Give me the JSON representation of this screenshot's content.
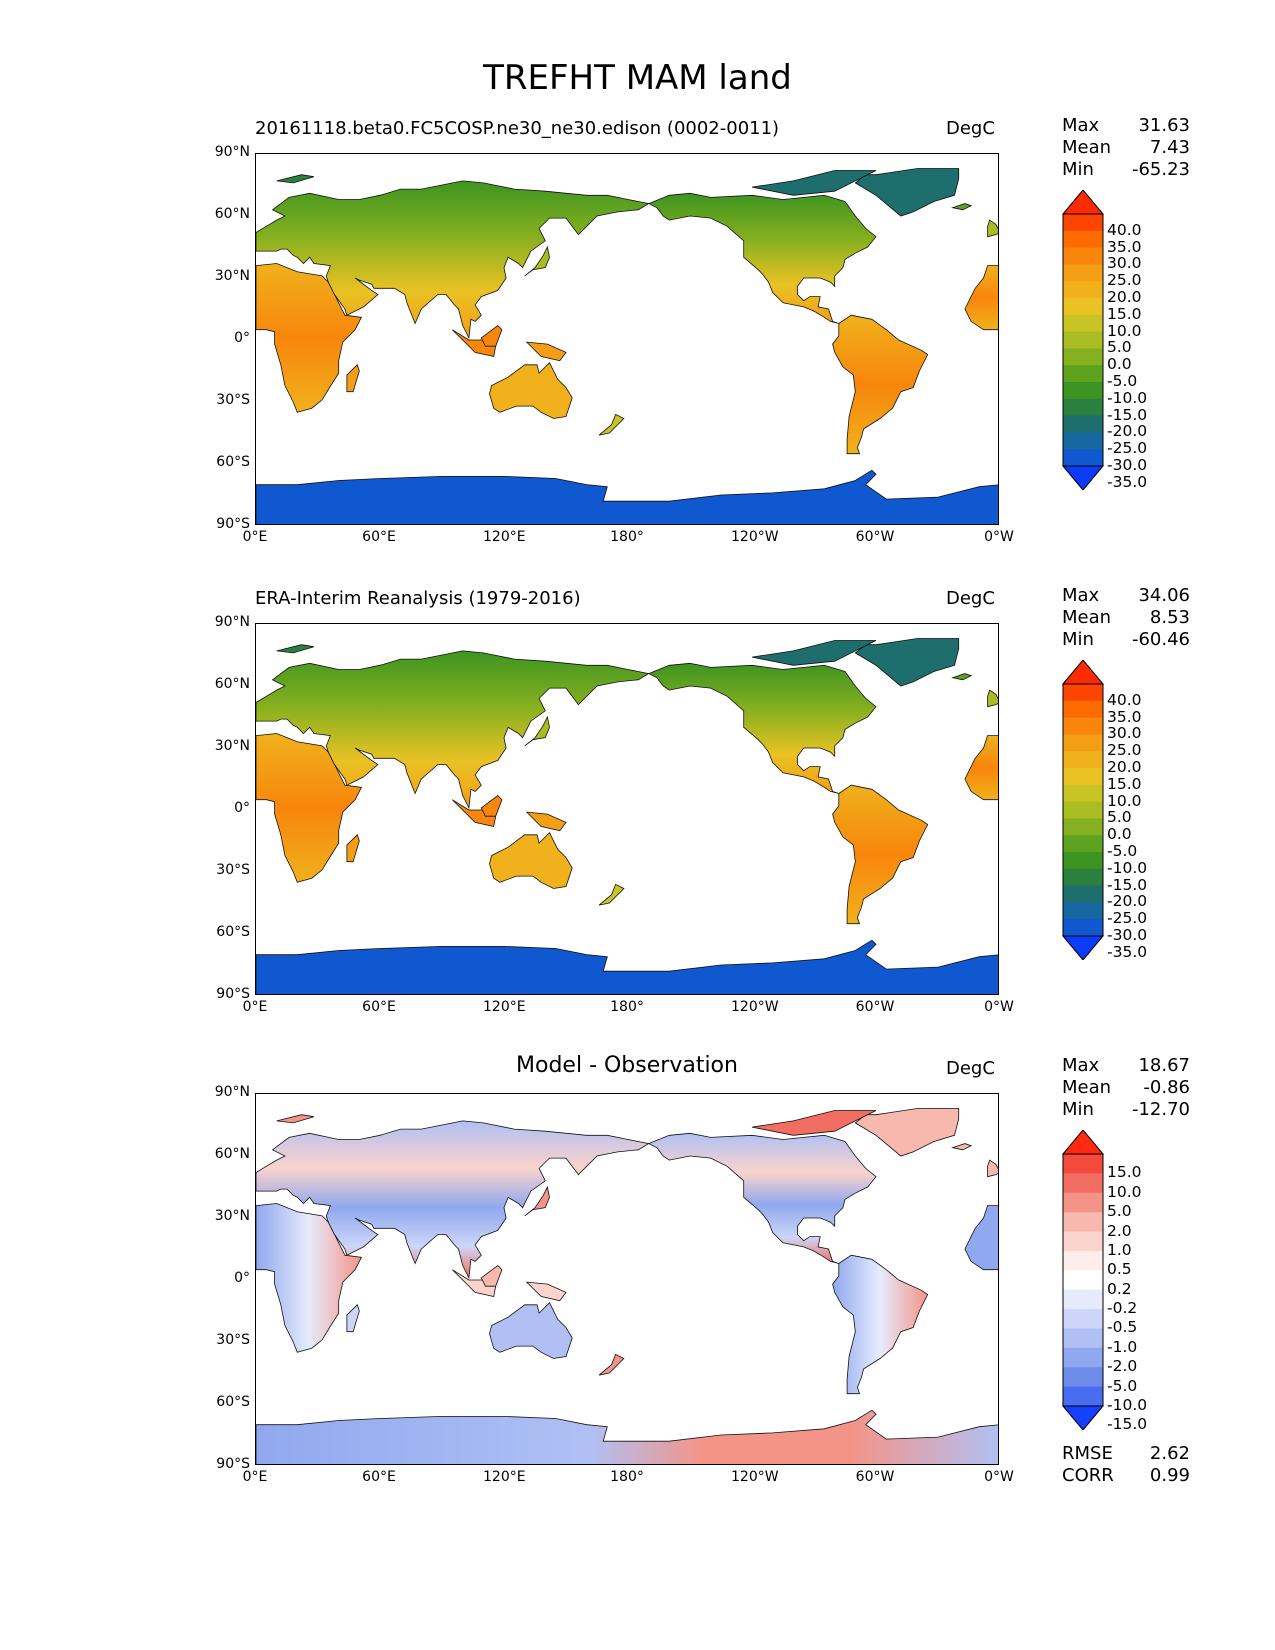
{
  "title": "TREFHT MAM land",
  "lat_ticks": [
    "90°N",
    "60°N",
    "30°N",
    "0°",
    "30°S",
    "60°S",
    "90°S"
  ],
  "lon_ticks": [
    "0°E",
    "60°E",
    "120°E",
    "180°",
    "120°W",
    "60°W",
    "0°W"
  ],
  "panels": [
    {
      "title": "20161118.beta0.FC5COSP.ne30_ne30.edison (0002-0011)",
      "units": "DegC",
      "stats": [
        {
          "label": "Max",
          "value": "31.63"
        },
        {
          "label": "Mean",
          "value": "7.43"
        },
        {
          "label": "Min",
          "value": "-65.23"
        }
      ],
      "colorbar_labels": [
        "40.0",
        "35.0",
        "30.0",
        "25.0",
        "20.0",
        "15.0",
        "10.0",
        "5.0",
        "0.0",
        "-5.0",
        "-10.0",
        "-15.0",
        "-20.0",
        "-25.0",
        "-30.0",
        "-35.0"
      ],
      "colors": [
        "#fe2a00",
        "#fe4500",
        "#fd6a00",
        "#f8860c",
        "#f49e16",
        "#f0b11c",
        "#e9c224",
        "#c9c426",
        "#a9bc22",
        "#85b01f",
        "#5ea31f",
        "#3d9421",
        "#2b8040",
        "#1e6e6e",
        "#1768a0",
        "#1058d0",
        "#0a3cfa"
      ]
    },
    {
      "title": "ERA-Interim Reanalysis (1979-2016)",
      "units": "DegC",
      "stats": [
        {
          "label": "Max",
          "value": "34.06"
        },
        {
          "label": "Mean",
          "value": "8.53"
        },
        {
          "label": "Min",
          "value": "-60.46"
        }
      ],
      "colorbar_labels": [
        "40.0",
        "35.0",
        "30.0",
        "25.0",
        "20.0",
        "15.0",
        "10.0",
        "5.0",
        "0.0",
        "-5.0",
        "-10.0",
        "-15.0",
        "-20.0",
        "-25.0",
        "-30.0",
        "-35.0"
      ],
      "colors": [
        "#fe2a00",
        "#fe4500",
        "#fd6a00",
        "#f8860c",
        "#f49e16",
        "#f0b11c",
        "#e9c224",
        "#c9c426",
        "#a9bc22",
        "#85b01f",
        "#5ea31f",
        "#3d9421",
        "#2b8040",
        "#1e6e6e",
        "#1768a0",
        "#1058d0",
        "#0a3cfa"
      ]
    },
    {
      "title": "Model - Observation",
      "units": "DegC",
      "stats": [
        {
          "label": "Max",
          "value": "18.67"
        },
        {
          "label": "Mean",
          "value": "-0.86"
        },
        {
          "label": "Min",
          "value": "-12.70"
        }
      ],
      "extra_stats": [
        {
          "label": "RMSE",
          "value": "2.62"
        },
        {
          "label": "CORR",
          "value": "0.99"
        }
      ],
      "colorbar_labels": [
        "15.0",
        "10.0",
        "5.0",
        "2.0",
        "1.0",
        "0.5",
        "0.2",
        "-0.2",
        "-0.5",
        "-1.0",
        "-2.0",
        "-5.0",
        "-10.0",
        "-15.0"
      ],
      "colors": [
        "#ff2a10",
        "#f24a3c",
        "#f26e62",
        "#f49488",
        "#f7b8ae",
        "#fad3cc",
        "#fdeeec",
        "#ffffff",
        "#e6ebfc",
        "#cdd6f8",
        "#b0c0f4",
        "#90a8ef",
        "#6e8cea",
        "#4a6cf0",
        "#1640ff"
      ]
    }
  ]
}
